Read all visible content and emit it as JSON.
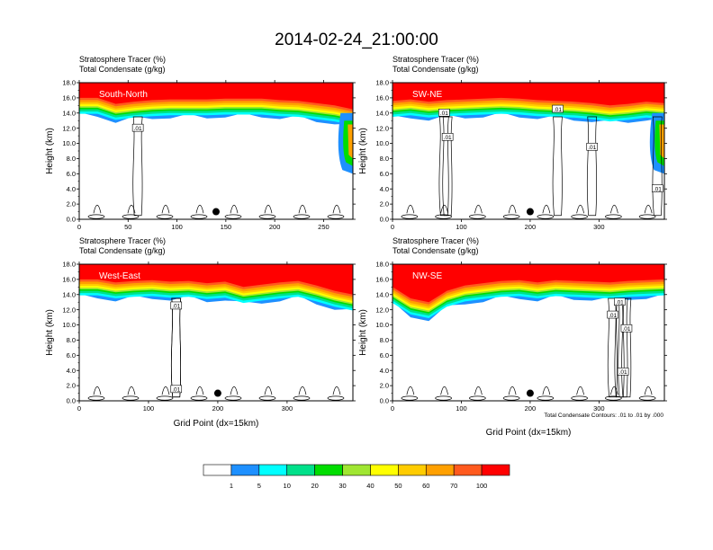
{
  "figure": {
    "title": "2014-02-24_21:00:00",
    "footnote": "Total Condensate Contours: .01 to .01 by .000"
  },
  "colorbar": {
    "colors": [
      "#ffffff",
      "#1e90ff",
      "#00ffff",
      "#00e08a",
      "#00dd00",
      "#a0e632",
      "#ffff00",
      "#ffcc00",
      "#ffa000",
      "#ff5a1e",
      "#ff0000"
    ],
    "labels": [
      "1",
      "5",
      "10",
      "20",
      "30",
      "40",
      "50",
      "60",
      "70",
      "100"
    ]
  },
  "chart_data": [
    {
      "type": "heatmap",
      "overlay_label": "South-North",
      "title_left": "Stratosphere Tracer   (%)",
      "title_left2": "Total Condensate   (g/kg)",
      "ylabel": "Height (km)",
      "xlabel": "",
      "xlim": [
        0,
        280
      ],
      "xticks": [
        0,
        50,
        100,
        150,
        200,
        250
      ],
      "ylim": [
        0,
        18
      ],
      "yticks": [
        "0.0",
        "2.0",
        "4.0",
        "6.0",
        "8.0",
        "10.0",
        "12.0",
        "14.0",
        "16.0",
        "18.0"
      ],
      "tropopause_km": [
        15.0,
        15.0,
        14.2,
        14.5,
        14.7,
        14.8,
        14.8,
        14.8,
        14.9,
        14.9,
        14.9,
        14.7,
        14.6,
        14.3,
        14.0,
        13.5
      ],
      "rhs_bulge": true,
      "marker": {
        "x": 140,
        "y_km": 1.0
      },
      "contour_labels": [
        {
          "x": 60,
          "y_km": 12.0,
          "text": ".01"
        }
      ]
    },
    {
      "type": "heatmap",
      "overlay_label": "SW-NE",
      "title_left": "Stratosphere Tracer   (%)",
      "title_left2": "Total Condensate   (g/kg)",
      "ylabel": "Height (km)",
      "xlabel": "",
      "xlim": [
        0,
        395
      ],
      "xticks": [
        0,
        100,
        200,
        300
      ],
      "ylim": [
        0,
        18
      ],
      "yticks": [
        "0.0",
        "2.0",
        "4.0",
        "6.0",
        "8.0",
        "10.0",
        "12.0",
        "14.0",
        "16.0",
        "18.0"
      ],
      "tropopause_km": [
        14.6,
        14.8,
        14.5,
        14.7,
        14.8,
        14.9,
        15.0,
        14.9,
        14.7,
        14.6,
        14.5,
        14.3,
        14.0,
        14.2,
        14.5,
        14.3
      ],
      "rhs_bulge": true,
      "marker": {
        "x": 200,
        "y_km": 1.0
      },
      "contour_labels": [
        {
          "x": 75,
          "y_km": 14.0,
          "text": ".01"
        },
        {
          "x": 80,
          "y_km": 10.8,
          "text": ".01"
        },
        {
          "x": 240,
          "y_km": 14.5,
          "text": ".01"
        },
        {
          "x": 290,
          "y_km": 9.5,
          "text": ".01"
        },
        {
          "x": 385,
          "y_km": 4.0,
          "text": ".01"
        }
      ]
    },
    {
      "type": "heatmap",
      "overlay_label": "West-East",
      "title_left": "Stratosphere Tracer   (%)",
      "title_left2": "Total Condensate   (g/kg)",
      "ylabel": "Height (km)",
      "xlabel": "Grid Point (dx=15km)",
      "xlim": [
        0,
        395
      ],
      "xticks": [
        0,
        100,
        200,
        300
      ],
      "ylim": [
        0,
        18
      ],
      "yticks": [
        "0.0",
        "2.0",
        "4.0",
        "6.0",
        "8.0",
        "10.0",
        "12.0",
        "14.0",
        "16.0",
        "18.0"
      ],
      "tropopause_km": [
        15.0,
        15.0,
        14.6,
        14.8,
        14.9,
        14.7,
        14.8,
        14.5,
        14.7,
        14.0,
        14.3,
        14.6,
        14.8,
        14.2,
        13.5,
        13.0
      ],
      "rhs_bulge": false,
      "marker": {
        "x": 200,
        "y_km": 1.0
      },
      "contour_labels": [
        {
          "x": 140,
          "y_km": 12.5,
          "text": ".01"
        },
        {
          "x": 140,
          "y_km": 1.5,
          "text": ".01"
        }
      ]
    },
    {
      "type": "heatmap",
      "overlay_label": "NW-SE",
      "title_left": "Stratosphere Tracer   (%)",
      "title_left2": "Total Condensate   (g/kg)",
      "ylabel": "Height (km)",
      "xlabel": "Grid Point (dx=15km)",
      "xlim": [
        0,
        395
      ],
      "xticks": [
        0,
        100,
        200,
        300
      ],
      "ylim": [
        0,
        18
      ],
      "yticks": [
        "0.0",
        "2.0",
        "4.0",
        "6.0",
        "8.0",
        "10.0",
        "12.0",
        "14.0",
        "16.0",
        "18.0"
      ],
      "tropopause_km": [
        14.0,
        12.5,
        12.0,
        13.5,
        14.2,
        14.5,
        14.8,
        14.9,
        14.6,
        14.9,
        14.8,
        14.7,
        14.6,
        14.8,
        14.9,
        15.0
      ],
      "rhs_bulge": false,
      "marker": {
        "x": 200,
        "y_km": 1.0
      },
      "contour_labels": [
        {
          "x": 330,
          "y_km": 13.0,
          "text": ".01"
        },
        {
          "x": 320,
          "y_km": 11.3,
          "text": ".01"
        },
        {
          "x": 340,
          "y_km": 9.5,
          "text": ".01"
        },
        {
          "x": 335,
          "y_km": 3.8,
          "text": ".01"
        }
      ]
    }
  ]
}
